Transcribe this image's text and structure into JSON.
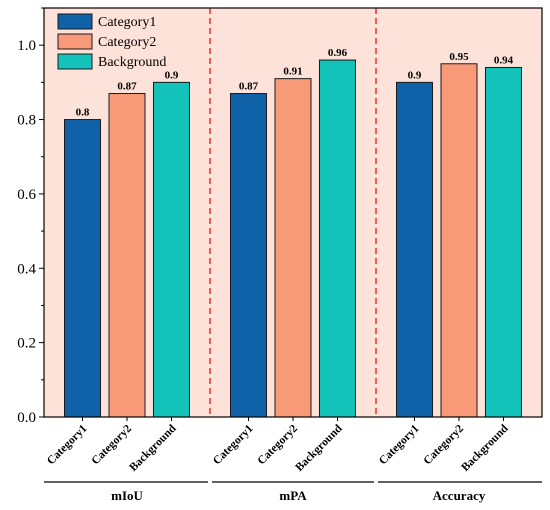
{
  "chart_data": {
    "type": "bar",
    "title": "",
    "xlabel": "",
    "ylabel": "",
    "ylim": [
      0,
      1.1
    ],
    "yticks": [
      "0.0",
      "0.2",
      "0.4",
      "0.6",
      "0.8",
      "1.0"
    ],
    "grid": false,
    "legend_position": "top-left",
    "groups": [
      {
        "label": "mIoU",
        "categories": [
          "Category1",
          "Category2",
          "Background"
        ],
        "values": [
          0.8,
          0.87,
          0.9
        ],
        "value_labels": [
          "0.8",
          "0.87",
          "0.9"
        ]
      },
      {
        "label": "mPA",
        "categories": [
          "Category1",
          "Category2",
          "Background"
        ],
        "values": [
          0.87,
          0.91,
          0.96
        ],
        "value_labels": [
          "0.87",
          "0.91",
          "0.96"
        ]
      },
      {
        "label": "Accuracy",
        "categories": [
          "Category1",
          "Category2",
          "Background"
        ],
        "values": [
          0.9,
          0.95,
          0.94
        ],
        "value_labels": [
          "0.9",
          "0.95",
          "0.94"
        ]
      }
    ],
    "series": [
      {
        "name": "Category1",
        "color": "#0f62a8"
      },
      {
        "name": "Category2",
        "color": "#f89a78"
      },
      {
        "name": "Background",
        "color": "#13c2b8"
      }
    ],
    "background_color": "#fde2d9",
    "separator_color": "#ee2222"
  }
}
